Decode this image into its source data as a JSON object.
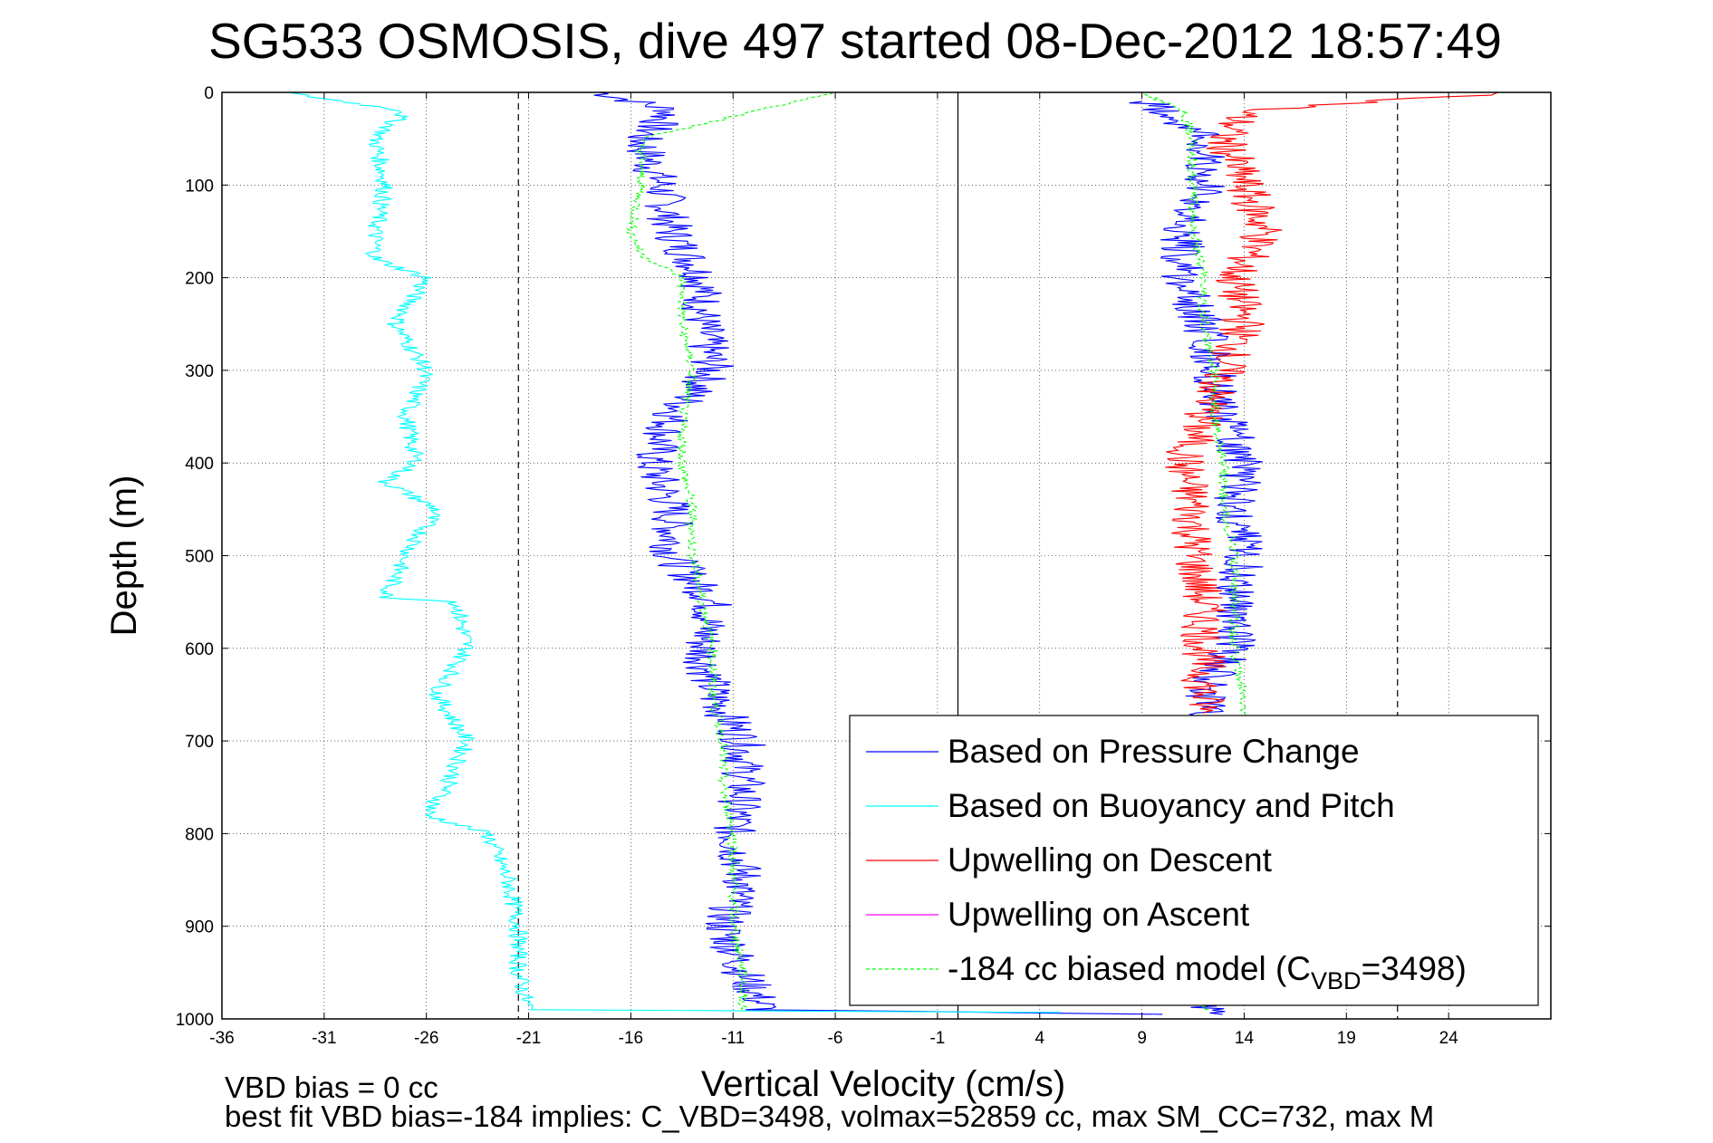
{
  "chart_data": {
    "type": "line",
    "title": "SG533 OSMOSIS, dive 497 started 08-Dec-2012 18:57:49",
    "xlabel": "Vertical Velocity (cm/s)",
    "ylabel": "Depth (m)",
    "xlim": [
      -36,
      29
    ],
    "ylim": [
      0,
      1000
    ],
    "y_reversed": true,
    "grid": true,
    "grid_style": "dotted",
    "legend_position": "lower-right",
    "x_ticks": [
      -36,
      -31,
      -26,
      -21,
      -16,
      -11,
      -6,
      -1,
      4,
      9,
      14,
      19,
      24
    ],
    "y_ticks": [
      0,
      100,
      200,
      300,
      400,
      500,
      600,
      700,
      800,
      900,
      1000
    ],
    "reference_lines": [
      {
        "x": -21.5,
        "style": "dashed"
      },
      {
        "x": 0,
        "style": "solid"
      },
      {
        "x": 21.5,
        "style": "dashed"
      }
    ],
    "series": [
      {
        "name": "Based on Pressure Change",
        "color": "#0000ff",
        "style": "solid",
        "depth": [
          0,
          20,
          50,
          80,
          100,
          150,
          200,
          250,
          300,
          350,
          400,
          450,
          500,
          550,
          600,
          650,
          700,
          750,
          800,
          850,
          900,
          950,
          990,
          995
        ],
        "velocity": [
          -17.5,
          -14,
          -15.5,
          -15,
          -14.5,
          -14,
          -12.5,
          -12.5,
          -12,
          -14,
          -15,
          -14,
          -14,
          -12,
          -12.5,
          -12,
          -10.5,
          -10.5,
          -11,
          -10.5,
          -11.5,
          -10.5,
          -9.5,
          10
        ],
        "depth_ascent": [
          995,
          950,
          900,
          850,
          800,
          750,
          700,
          650,
          600,
          550,
          500,
          450,
          400,
          350,
          300,
          250,
          200,
          150,
          100,
          50,
          20,
          10
        ],
        "velocity_ascent": [
          12,
          12.5,
          12.5,
          12.5,
          13,
          13,
          13,
          12,
          13.5,
          13.5,
          14,
          13.5,
          14,
          13,
          12.5,
          12,
          11,
          11,
          12,
          12,
          10,
          9
        ]
      },
      {
        "name": "Based on Buoyancy and Pitch",
        "color": "#00ffff",
        "style": "solid",
        "depth": [
          0,
          20,
          50,
          100,
          150,
          180,
          200,
          250,
          300,
          350,
          400,
          420,
          450,
          500,
          545,
          550,
          600,
          650,
          700,
          750,
          780,
          800,
          850,
          900,
          950,
          990,
          993
        ],
        "velocity": [
          -33,
          -27,
          -28.5,
          -28,
          -28.5,
          -28.5,
          -26,
          -27.5,
          -26,
          -27,
          -26.5,
          -28,
          -25.5,
          -27,
          -28,
          -24.5,
          -24,
          -25.5,
          -24,
          -25,
          -26,
          -23,
          -22,
          -21.5,
          -21.5,
          -21,
          5
        ]
      },
      {
        "name": "Upwelling on Descent",
        "color": "#ff0000",
        "style": "solid",
        "depth": [
          0,
          20,
          50,
          100,
          150,
          200,
          250,
          300,
          350,
          400,
          450,
          500,
          550,
          600,
          650,
          670
        ],
        "velocity": [
          27,
          14,
          13,
          14,
          15,
          13.5,
          14,
          13,
          12,
          11,
          11.5,
          11.5,
          12,
          12,
          12,
          12
        ]
      },
      {
        "name": "Upwelling on Ascent",
        "color": "#ff00ff",
        "style": "solid",
        "depth": [],
        "velocity": []
      },
      {
        "name": "-184 cc biased model (C",
        "legend_sub": "VBD",
        "legend_suffix": "=3498)",
        "color": "#00ff00",
        "style": "dashed",
        "depth": [
          0,
          50,
          100,
          150,
          175,
          200,
          250,
          300,
          350,
          400,
          450,
          500,
          550,
          600,
          650,
          700,
          750,
          800,
          850,
          900,
          950,
          990
        ],
        "velocity": [
          -6,
          -15.5,
          -15.5,
          -16,
          -15.5,
          -13.5,
          -13.5,
          -13,
          -13.5,
          -13.5,
          -13,
          -13,
          -12.5,
          -12,
          -12,
          -11.5,
          -11.5,
          -11,
          -11,
          -11,
          -10.5,
          -10.5
        ],
        "depth_ascent": [
          990,
          950,
          900,
          850,
          800,
          750,
          700,
          650,
          600,
          550,
          500,
          450,
          400,
          350,
          300,
          250,
          200,
          150,
          100,
          50,
          20,
          0
        ],
        "velocity_ascent": [
          12,
          13.5,
          13.5,
          13.5,
          13.5,
          13.5,
          14,
          14,
          13.5,
          13.5,
          13.5,
          13,
          13,
          12.5,
          12.5,
          12,
          12,
          11.5,
          11.5,
          11.5,
          11,
          9
        ]
      }
    ],
    "annotations": [
      "VBD bias = 0 cc",
      "best fit VBD bias=-184 implies: C_VBD=3498, volmax=52859 cc, max SM_CC=732, max M"
    ]
  }
}
